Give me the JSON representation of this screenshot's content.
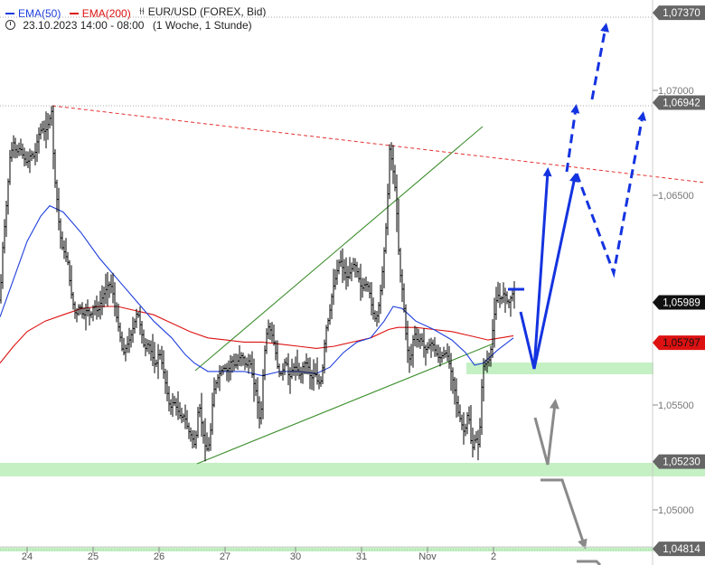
{
  "header": {
    "ema50_label": "EMA(50)",
    "ema200_label": "EMA(200)",
    "instrument": "EUR/USD (FOREX, Bid)",
    "period": "23.10.2023 14:00 - 08:00",
    "interval": "(1 Woche, 1 Stunde)",
    "ema50_color": "#1f3fdc",
    "ema200_color": "#dd1111",
    "bar_icon": "ohlc-bars-icon",
    "clock_icon": "clock-icon"
  },
  "chart_data": {
    "type": "ohlc-bar",
    "instrument": "EUR/USD",
    "x_ticks": [
      "24",
      "25",
      "26",
      "27",
      "30",
      "31",
      "Nov",
      "2"
    ],
    "y_ticks": [
      1.05,
      1.055,
      1.065,
      1.07
    ],
    "y_tick_labels": [
      "1,05000",
      "1,05500",
      "1,06500",
      "1,07000"
    ],
    "ylim": [
      1.0481,
      1.0737
    ],
    "price_tags": [
      {
        "value": 1.0737,
        "label": "1,07370",
        "style": "level"
      },
      {
        "value": 1.06942,
        "label": "1,06942",
        "style": "level"
      },
      {
        "value": 1.05989,
        "label": "1,05989",
        "style": "last"
      },
      {
        "value": 1.05797,
        "label": "1,05797",
        "style": "ema200"
      },
      {
        "value": 1.0523,
        "label": "1,05230",
        "style": "level"
      },
      {
        "value": 1.04814,
        "label": "1,04814",
        "style": "level"
      }
    ],
    "price": [
      [
        0,
        1.06
      ],
      [
        3,
        1.0625
      ],
      [
        7,
        1.0645
      ],
      [
        11,
        1.0668
      ],
      [
        15,
        1.0675
      ],
      [
        18,
        1.067
      ],
      [
        22,
        1.0673
      ],
      [
        26,
        1.0668
      ],
      [
        30,
        1.0665
      ],
      [
        34,
        1.067
      ],
      [
        38,
        1.0668
      ],
      [
        42,
        1.0678
      ],
      [
        46,
        1.0682
      ],
      [
        50,
        1.068
      ],
      [
        54,
        1.0685
      ],
      [
        57,
        1.069
      ],
      [
        60,
        1.066
      ],
      [
        63,
        1.0648
      ],
      [
        66,
        1.0632
      ],
      [
        69,
        1.0625
      ],
      [
        72,
        1.0622
      ],
      [
        75,
        1.0618
      ],
      [
        78,
        1.0605
      ],
      [
        81,
        1.0598
      ],
      [
        84,
        1.0592
      ],
      [
        88,
        1.0598
      ],
      [
        92,
        1.0592
      ],
      [
        96,
        1.0596
      ],
      [
        100,
        1.0592
      ],
      [
        104,
        1.0598
      ],
      [
        108,
        1.0594
      ],
      [
        112,
        1.06
      ],
      [
        116,
        1.0604
      ],
      [
        120,
        1.0608
      ],
      [
        124,
        1.0606
      ],
      [
        128,
        1.0594
      ],
      [
        132,
        1.0585
      ],
      [
        136,
        1.0574
      ],
      [
        140,
        1.0578
      ],
      [
        144,
        1.0582
      ],
      [
        148,
        1.0588
      ],
      [
        152,
        1.0595
      ],
      [
        156,
        1.0586
      ],
      [
        160,
        1.0576
      ],
      [
        164,
        1.058
      ],
      [
        168,
        1.0574
      ],
      [
        172,
        1.0568
      ],
      [
        176,
        1.0576
      ],
      [
        180,
        1.0568
      ],
      [
        184,
        1.0558
      ],
      [
        188,
        1.0548
      ],
      [
        192,
        1.0552
      ],
      [
        196,
        1.0548
      ],
      [
        200,
        1.0544
      ],
      [
        204,
        1.0545
      ],
      [
        208,
        1.0538
      ],
      [
        212,
        1.0535
      ],
      [
        216,
        1.053
      ],
      [
        220,
        1.0552
      ],
      [
        224,
        1.0538
      ],
      [
        228,
        1.0528
      ],
      [
        232,
        1.0532
      ],
      [
        236,
        1.0556
      ],
      [
        240,
        1.0562
      ],
      [
        244,
        1.0566
      ],
      [
        248,
        1.0568
      ],
      [
        252,
        1.0566
      ],
      [
        256,
        1.0572
      ],
      [
        260,
        1.0568
      ],
      [
        264,
        1.0572
      ],
      [
        268,
        1.0574
      ],
      [
        272,
        1.0568
      ],
      [
        276,
        1.0572
      ],
      [
        280,
        1.0562
      ],
      [
        284,
        1.0555
      ],
      [
        288,
        1.054
      ],
      [
        292,
        1.0572
      ],
      [
        296,
        1.0588
      ],
      [
        300,
        1.0585
      ],
      [
        304,
        1.0578
      ],
      [
        308,
        1.0565
      ],
      [
        312,
        1.0565
      ],
      [
        316,
        1.0572
      ],
      [
        320,
        1.0562
      ],
      [
        324,
        1.0568
      ],
      [
        328,
        1.0568
      ],
      [
        332,
        1.0563
      ],
      [
        336,
        1.057
      ],
      [
        340,
        1.057
      ],
      [
        344,
        1.0562
      ],
      [
        348,
        1.0566
      ],
      [
        352,
        1.056
      ],
      [
        356,
        1.0562
      ],
      [
        360,
        1.0585
      ],
      [
        364,
        1.0592
      ],
      [
        368,
        1.0605
      ],
      [
        372,
        1.0612
      ],
      [
        376,
        1.062
      ],
      [
        380,
        1.0614
      ],
      [
        384,
        1.061
      ],
      [
        388,
        1.0614
      ],
      [
        392,
        1.0618
      ],
      [
        396,
        1.0612
      ],
      [
        400,
        1.0605
      ],
      [
        404,
        1.0608
      ],
      [
        408,
        1.0606
      ],
      [
        412,
        1.0595
      ],
      [
        416,
        1.059
      ],
      [
        420,
        1.06
      ],
      [
        424,
        1.0618
      ],
      [
        428,
        1.064
      ],
      [
        431,
        1.0672
      ],
      [
        434,
        1.0665
      ],
      [
        438,
        1.065
      ],
      [
        442,
        1.0615
      ],
      [
        446,
        1.0602
      ],
      [
        450,
        1.0578
      ],
      [
        454,
        1.057
      ],
      [
        458,
        1.0585
      ],
      [
        462,
        1.058
      ],
      [
        466,
        1.0582
      ],
      [
        470,
        1.0576
      ],
      [
        474,
        1.0578
      ],
      [
        478,
        1.058
      ],
      [
        482,
        1.0575
      ],
      [
        486,
        1.0572
      ],
      [
        490,
        1.0574
      ],
      [
        494,
        1.0575
      ],
      [
        498,
        1.0568
      ],
      [
        502,
        1.056
      ],
      [
        506,
        1.0548
      ],
      [
        510,
        1.0542
      ],
      [
        514,
        1.0536
      ],
      [
        518,
        1.0548
      ],
      [
        522,
        1.0528
      ],
      [
        526,
        1.0535
      ],
      [
        530,
        1.053
      ],
      [
        534,
        1.0568
      ],
      [
        538,
        1.057
      ],
      [
        542,
        1.0572
      ],
      [
        546,
        1.059
      ],
      [
        550,
        1.0603
      ],
      [
        554,
        1.06
      ],
      [
        558,
        1.0604
      ],
      [
        562,
        1.0598
      ],
      [
        566,
        1.0602
      ],
      [
        570,
        1.0606
      ]
    ],
    "ema50": [
      [
        0,
        1.0592
      ],
      [
        15,
        1.061
      ],
      [
        30,
        1.0628
      ],
      [
        45,
        1.064
      ],
      [
        55,
        1.0645
      ],
      [
        70,
        1.0642
      ],
      [
        90,
        1.0632
      ],
      [
        110,
        1.062
      ],
      [
        130,
        1.061
      ],
      [
        150,
        1.06
      ],
      [
        170,
        1.059
      ],
      [
        190,
        1.0582
      ],
      [
        205,
        1.0574
      ],
      [
        215,
        1.057
      ],
      [
        230,
        1.0566
      ],
      [
        250,
        1.0566
      ],
      [
        270,
        1.0566
      ],
      [
        290,
        1.0564
      ],
      [
        310,
        1.0566
      ],
      [
        330,
        1.0566
      ],
      [
        350,
        1.0565
      ],
      [
        365,
        1.0568
      ],
      [
        380,
        1.0575
      ],
      [
        395,
        1.058
      ],
      [
        410,
        1.0582
      ],
      [
        425,
        1.059
      ],
      [
        435,
        1.0597
      ],
      [
        445,
        1.0596
      ],
      [
        460,
        1.059
      ],
      [
        480,
        1.0586
      ],
      [
        500,
        1.0581
      ],
      [
        515,
        1.0575
      ],
      [
        525,
        1.0569
      ],
      [
        535,
        1.057
      ],
      [
        550,
        1.0576
      ],
      [
        568,
        1.0582
      ]
    ],
    "ema200": [
      [
        0,
        1.057
      ],
      [
        15,
        1.0578
      ],
      [
        30,
        1.0585
      ],
      [
        50,
        1.059
      ],
      [
        70,
        1.0593
      ],
      [
        90,
        1.0596
      ],
      [
        110,
        1.0597
      ],
      [
        130,
        1.0597
      ],
      [
        150,
        1.0595
      ],
      [
        170,
        1.0593
      ],
      [
        190,
        1.0589
      ],
      [
        210,
        1.0585
      ],
      [
        230,
        1.0582
      ],
      [
        250,
        1.0581
      ],
      [
        270,
        1.058
      ],
      [
        290,
        1.058
      ],
      [
        310,
        1.0579
      ],
      [
        330,
        1.0578
      ],
      [
        350,
        1.0577
      ],
      [
        370,
        1.0578
      ],
      [
        390,
        1.058
      ],
      [
        410,
        1.0582
      ],
      [
        430,
        1.0586
      ],
      [
        440,
        1.0587
      ],
      [
        460,
        1.0587
      ],
      [
        480,
        1.0586
      ],
      [
        500,
        1.0585
      ],
      [
        520,
        1.0583
      ],
      [
        540,
        1.0581
      ],
      [
        568,
        1.0583
      ]
    ]
  }
}
